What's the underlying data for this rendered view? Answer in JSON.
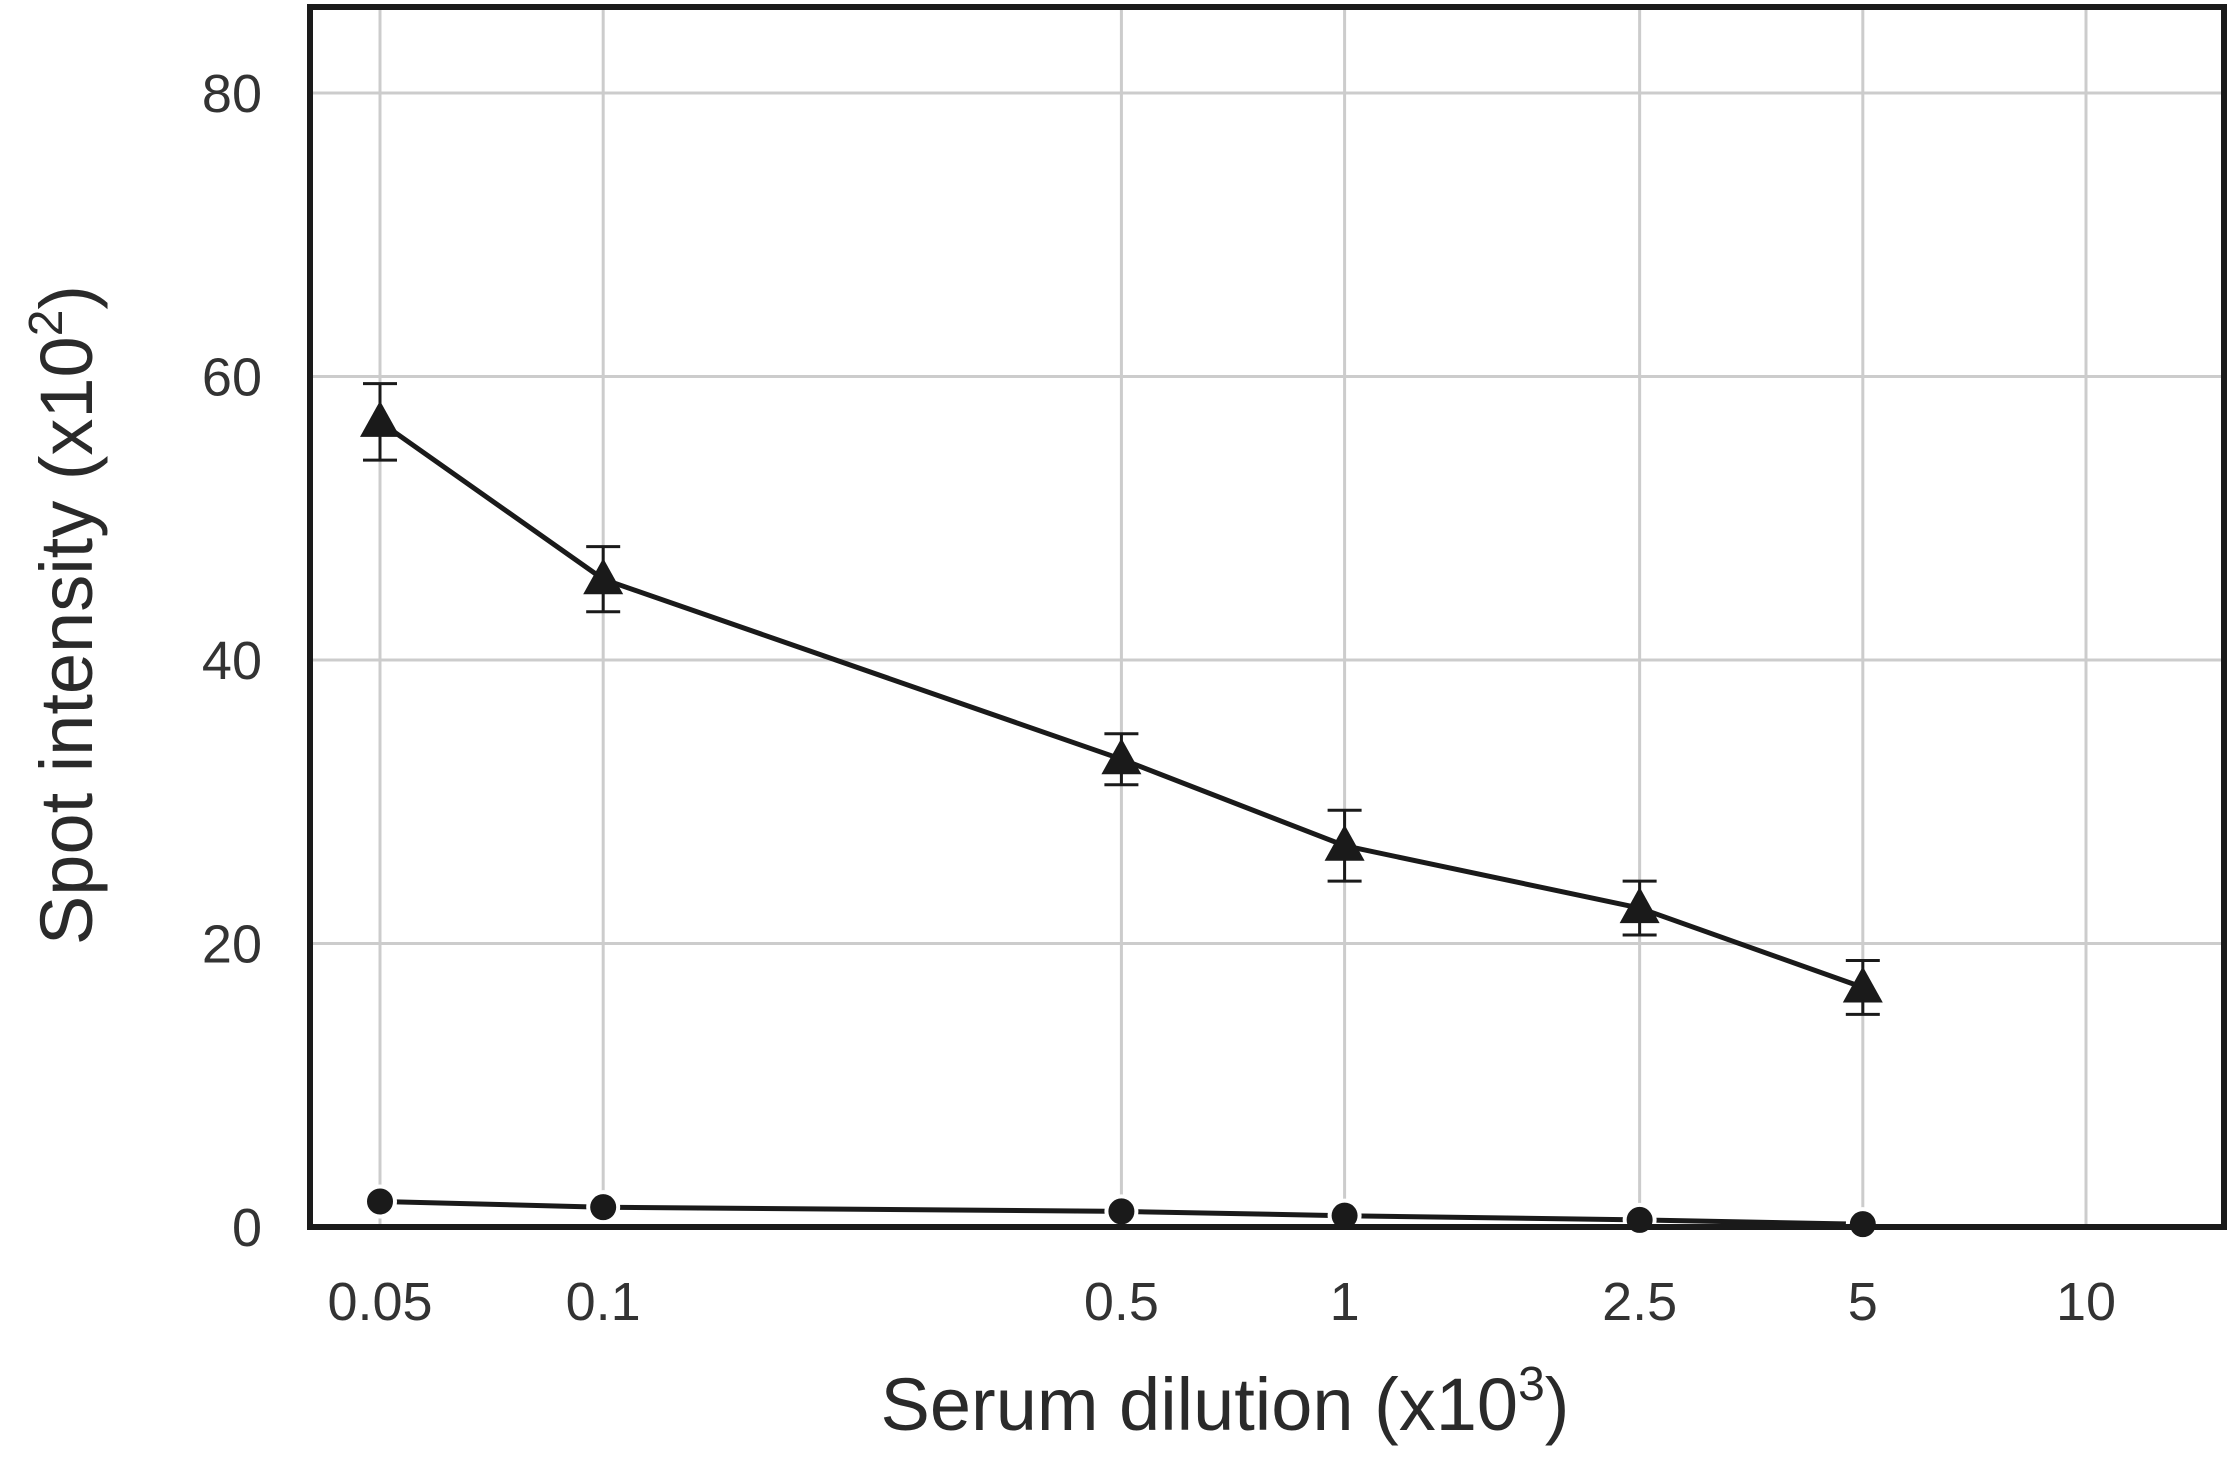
{
  "chart_data": {
    "type": "line",
    "title": "",
    "xlabel": {
      "text": "Serum dilution (x10",
      "superscript": "3",
      "suffix": ")"
    },
    "ylabel": {
      "text": "Spot intensity (x10",
      "superscript": "2",
      "suffix": ")"
    },
    "x_scale": "log",
    "x_ticks": [
      0.05,
      0.1,
      0.5,
      1,
      2.5,
      5,
      10
    ],
    "x_tick_labels": [
      "0.05",
      "0.1",
      "0.5",
      "1",
      "2.5",
      "5",
      "10"
    ],
    "y_ticks": [
      0,
      20,
      40,
      60,
      80
    ],
    "y_tick_labels": [
      "0",
      "20",
      "40",
      "60",
      "80"
    ],
    "ylim": [
      0,
      86
    ],
    "grid": true,
    "x": [
      0.05,
      0.1,
      0.5,
      1,
      2.5,
      5
    ],
    "series": [
      {
        "marker": "triangle",
        "values": [
          56.8,
          45.7,
          33.0,
          26.9,
          22.5,
          16.9
        ],
        "error": [
          2.7,
          2.3,
          1.8,
          2.5,
          1.9,
          1.9
        ]
      },
      {
        "marker": "circle",
        "values": [
          1.8,
          1.4,
          1.1,
          0.8,
          0.5,
          0.2
        ]
      }
    ],
    "colors": {
      "line": "#1a1a1a",
      "grid": "#cccccc",
      "frame": "#1a1a1a",
      "text": "#333333"
    }
  }
}
